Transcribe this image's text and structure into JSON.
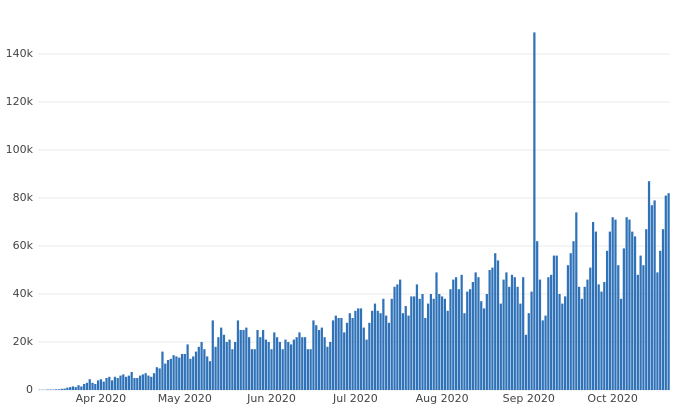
{
  "chart_data": {
    "type": "bar",
    "categories": [
      null,
      null,
      null,
      null,
      null,
      null,
      null,
      null,
      null,
      null,
      null,
      null,
      null,
      null,
      null,
      null,
      null,
      null,
      null,
      null,
      null,
      null,
      null,
      null,
      null,
      null,
      null,
      null,
      null,
      null,
      null,
      null,
      null,
      null,
      null,
      null,
      null,
      null,
      null,
      null,
      null,
      null,
      null,
      null,
      null,
      null,
      null,
      null,
      null,
      null,
      null,
      null,
      null,
      null,
      null,
      null,
      null,
      null,
      null,
      null,
      null,
      null,
      null,
      null,
      null,
      null,
      null,
      null,
      null,
      null,
      null,
      null,
      null,
      null,
      null,
      null,
      null,
      null,
      null,
      null,
      null,
      null,
      null,
      null,
      null,
      null,
      null,
      null,
      null,
      null,
      null,
      null,
      null,
      null,
      null,
      null,
      null,
      null,
      null,
      null,
      null,
      null,
      null,
      null,
      null,
      null,
      null,
      null,
      null,
      null,
      null,
      null,
      null,
      null,
      null,
      null,
      null,
      null,
      null,
      null,
      null,
      null,
      null,
      null,
      null,
      null,
      null,
      null,
      null,
      null,
      null,
      null,
      null,
      null,
      null,
      null,
      null,
      null,
      null,
      null,
      null,
      null,
      null,
      null,
      null,
      null,
      null,
      null,
      null,
      null,
      null,
      null,
      null,
      null,
      null,
      null,
      null,
      null,
      null,
      null,
      null,
      null,
      null,
      null,
      null,
      null,
      null,
      null,
      null,
      null,
      null,
      null,
      null,
      null,
      null,
      null,
      null,
      null,
      null,
      null,
      null,
      null,
      null,
      null,
      null,
      null,
      null,
      null,
      null,
      null,
      null,
      null,
      null,
      null,
      null,
      null,
      null,
      null,
      null,
      null,
      null,
      null,
      null,
      null,
      null,
      null,
      null,
      null,
      null,
      null,
      null,
      null,
      null,
      null,
      null,
      null,
      null,
      null,
      null,
      null,
      null,
      null,
      null,
      null,
      null,
      null
    ],
    "values": [
      100,
      100,
      100,
      200,
      200,
      200,
      300,
      300,
      500,
      600,
      1000,
      1200,
      1500,
      1200,
      2000,
      1500,
      2500,
      3000,
      4500,
      3000,
      2500,
      4000,
      4500,
      3500,
      5000,
      5500,
      4000,
      5500,
      5000,
      6000,
      6500,
      5500,
      6000,
      7500,
      5000,
      5000,
      6000,
      6500,
      7000,
      6000,
      5500,
      7000,
      9500,
      9000,
      16000,
      11000,
      12500,
      13000,
      14500,
      14000,
      13500,
      15000,
      15000,
      19000,
      13000,
      14000,
      16000,
      18000,
      20000,
      17000,
      14000,
      12000,
      29000,
      18000,
      22000,
      26000,
      23000,
      20000,
      21000,
      17000,
      20000,
      29000,
      25000,
      25000,
      26000,
      22000,
      17000,
      17000,
      25000,
      22000,
      25000,
      21000,
      20000,
      17000,
      24000,
      22000,
      20000,
      17000,
      21000,
      20000,
      19000,
      21000,
      22000,
      24000,
      22000,
      22000,
      17000,
      17000,
      29000,
      27000,
      25000,
      26000,
      22000,
      18000,
      20000,
      29000,
      31000,
      30000,
      30000,
      24000,
      28000,
      32000,
      30000,
      33000,
      34000,
      34000,
      26000,
      21000,
      28000,
      33000,
      36000,
      33000,
      32000,
      38000,
      31000,
      28000,
      38000,
      43000,
      44000,
      46000,
      32000,
      35000,
      31000,
      39000,
      39000,
      44000,
      38000,
      40000,
      30000,
      36000,
      40000,
      38000,
      49000,
      40000,
      39000,
      38000,
      33000,
      42000,
      46000,
      47000,
      42000,
      48000,
      32000,
      41000,
      42000,
      45000,
      49000,
      47000,
      37000,
      34000,
      40000,
      50000,
      51000,
      57000,
      54000,
      36000,
      46000,
      49000,
      43000,
      48000,
      47000,
      43000,
      36000,
      47000,
      23000,
      32000,
      41000,
      149000,
      62000,
      46000,
      29000,
      31000,
      47000,
      48000,
      56000,
      56000,
      40000,
      36000,
      39000,
      52000,
      57000,
      62000,
      74000,
      43000,
      38000,
      43000,
      46000,
      51000,
      70000,
      66000,
      44000,
      41000,
      45000,
      58000,
      66000,
      72000,
      71000,
      52000,
      38000,
      59000,
      72000,
      71000,
      66000,
      64000,
      48000,
      56000,
      52000,
      67000,
      87000,
      77000,
      79000,
      49000,
      58000,
      67000,
      81000,
      82000
    ],
    "color": "#2f72b8",
    "ylim": [
      0,
      150000
    ],
    "yticks": [
      0,
      {
        "value": 20000,
        "label": "20k"
      },
      {
        "value": 40000,
        "label": "40k"
      },
      {
        "value": 60000,
        "label": "60k"
      },
      {
        "value": 80000,
        "label": "80k"
      },
      {
        "value": 100000,
        "label": "100k"
      },
      {
        "value": 120000,
        "label": "120k"
      },
      {
        "value": 140000,
        "label": "140k"
      }
    ],
    "xticks": [
      {
        "value": 22,
        "label": "Apr 2020"
      },
      {
        "value": 52,
        "label": "May 2020"
      },
      {
        "value": 83,
        "label": "Jun 2020"
      },
      {
        "value": 113,
        "label": "Jul 2020"
      },
      {
        "value": 144,
        "label": "Aug 2020"
      },
      {
        "value": 175,
        "label": "Sep 2020"
      },
      {
        "value": 205,
        "label": "Oct 2020"
      }
    ],
    "grid": true
  }
}
